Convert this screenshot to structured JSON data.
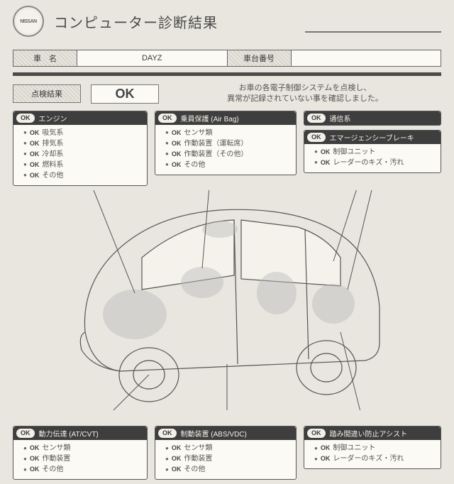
{
  "brand": "NISSAN",
  "title": "コンピューター診断結果",
  "vehicle": {
    "name_label": "車　名",
    "name_value": "DAYZ",
    "number_label": "車台番号",
    "number_value": ""
  },
  "summary": {
    "label": "点検結果",
    "status": "OK",
    "note_line1": "お車の各電子制御システムを点検し、",
    "note_line2": "異常が記録されていない事を確認しました。"
  },
  "panels_top": [
    {
      "status": "OK",
      "title": "エンジン",
      "items": [
        {
          "status": "OK",
          "label": "吸気系"
        },
        {
          "status": "OK",
          "label": "排気系"
        },
        {
          "status": "OK",
          "label": "冷却系"
        },
        {
          "status": "OK",
          "label": "燃料系"
        },
        {
          "status": "OK",
          "label": "その他"
        }
      ]
    },
    {
      "status": "OK",
      "title": "乗員保護 (Air Bag)",
      "items": [
        {
          "status": "OK",
          "label": "センサ類"
        },
        {
          "status": "OK",
          "label": "作動装置（運転席）"
        },
        {
          "status": "OK",
          "label": "作動装置（その他）"
        },
        {
          "status": "OK",
          "label": "その他"
        }
      ]
    },
    {
      "status": "OK",
      "title": "通信系",
      "items": []
    },
    {
      "status": "OK",
      "title": "エマージェンシーブレーキ",
      "items": [
        {
          "status": "OK",
          "label": "制御ユニット"
        },
        {
          "status": "OK",
          "label": "レーダーのキズ・汚れ"
        }
      ]
    }
  ],
  "panels_bottom": [
    {
      "status": "OK",
      "title": "動力伝達 (AT/CVT)",
      "items": [
        {
          "status": "OK",
          "label": "センサ類"
        },
        {
          "status": "OK",
          "label": "作動装置"
        },
        {
          "status": "OK",
          "label": "その他"
        }
      ]
    },
    {
      "status": "OK",
      "title": "制動装置 (ABS/VDC)",
      "items": [
        {
          "status": "OK",
          "label": "センサ類"
        },
        {
          "status": "OK",
          "label": "作動装置"
        },
        {
          "status": "OK",
          "label": "その他"
        }
      ]
    },
    {
      "status": "OK",
      "title": "踏み間違い防止アシスト",
      "items": [
        {
          "status": "OK",
          "label": "制御ユニット"
        },
        {
          "status": "OK",
          "label": "レーダーのキズ・汚れ"
        }
      ]
    }
  ],
  "colors": {
    "page_bg": "#e8e6df",
    "paper": "#fbfaf5",
    "panel_head_bg": "#3e3e3e",
    "panel_head_fg": "#f2f0e8",
    "border": "#555555",
    "text": "#3a3a3a"
  }
}
